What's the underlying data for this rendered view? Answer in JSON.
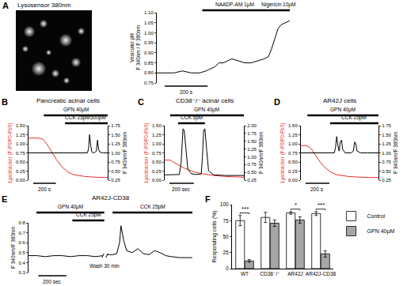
{
  "image": {
    "panel": "A",
    "caption": "Lysosensor 380nm"
  },
  "chart_data": [
    {
      "type": "line",
      "tick_labels": "y",
      "grid": false,
      "y_label": "Vesicular pH\nF 340nm / F 380nm",
      "xlim": [
        0,
        620
      ],
      "ylim": [
        0.75,
        1.1
      ],
      "yticks": [
        0.75,
        {
          "value": 0.8,
          "label": "0.80"
        },
        0.85,
        {
          "value": 0.9,
          "label": "0.90"
        },
        0.95,
        {
          "value": 1,
          "label": "1.00"
        },
        1.05,
        {
          "value": 1.1,
          "label": "1.10"
        }
      ],
      "series": [
        {
          "color": "#000000",
          "x": [
            0,
            40,
            80,
            120,
            160,
            200,
            230,
            250,
            270,
            290,
            310,
            330,
            350,
            380,
            410,
            440,
            470,
            500,
            520,
            535,
            550,
            565,
            580,
            600,
            620
          ],
          "values": [
            0.8,
            0.8,
            0.8,
            0.81,
            0.8,
            0.8,
            0.81,
            0.82,
            0.83,
            0.85,
            0.85,
            0.86,
            0.87,
            0.86,
            0.85,
            0.85,
            0.86,
            0.87,
            0.88,
            0.92,
            0.97,
            1.02,
            1.04,
            1.05,
            1.06
          ]
        }
      ],
      "periods": [
        {
          "label": "NAADP-AM 1μM",
          "start": 212,
          "end": 514
        },
        {
          "label": "Nigericin 10μM",
          "start": 514,
          "end": 620
        }
      ],
      "scale_bar": {
        "label": "200 s",
        "length": 200
      }
    },
    {
      "type": "line",
      "panel": "B",
      "title": "Pancreatic acinar cells",
      "tick_labels": "y",
      "grid": false,
      "y_label": "Lysotracker (F-F0/F0-Fb0)",
      "y2_label": "F 340nm/F 380nm",
      "xlim": [
        0,
        700
      ],
      "ylim": [
        0,
        1.5
      ],
      "yticks": [
        {
          "value": 0,
          "label": "0.00"
        },
        0.25,
        {
          "value": 0.5,
          "label": "0.50"
        },
        0.75,
        {
          "value": 1,
          "label": "1.00"
        },
        1.25,
        {
          "value": 1.5,
          "label": "1.50"
        }
      ],
      "y2lim": [
        0.25,
        1.75
      ],
      "y2ticks": [
        0.25,
        {
          "value": 0.5,
          "label": "0.50"
        },
        0.75,
        {
          "value": 1,
          "label": "1.00"
        },
        1.25,
        {
          "value": 1.5,
          "label": "1.50"
        },
        1.75
      ],
      "series": [
        {
          "color": "#e8302a",
          "x": [
            0,
            50,
            100,
            130,
            160,
            200,
            250,
            300,
            350,
            400,
            450,
            500,
            600,
            700
          ],
          "values": [
            1.15,
            1.16,
            1.15,
            1.12,
            1.0,
            0.8,
            0.55,
            0.35,
            0.22,
            0.15,
            0.12,
            0.1,
            0.08,
            0.07
          ]
        },
        {
          "color": "#000000",
          "axis": "y2",
          "x": [
            0,
            100,
            200,
            300,
            400,
            500,
            520,
            530,
            540,
            550,
            560,
            580,
            600,
            610,
            620,
            630,
            660,
            700
          ],
          "values": [
            1.0,
            1.0,
            0.99,
            1.0,
            1.0,
            1.0,
            1.0,
            1.1,
            1.5,
            1.2,
            1.02,
            1.0,
            1.05,
            1.35,
            1.1,
            1.02,
            1.0,
            1.0
          ]
        }
      ],
      "periods": [
        {
          "label": "GPN 40μM",
          "start": 135,
          "end": 700
        },
        {
          "label": "CCK 25pM",
          "start": 323,
          "end": 538
        },
        {
          "label": "500pM",
          "start": 538,
          "end": 700
        }
      ],
      "scale_bar": {
        "label": "200 s",
        "length": 200
      }
    },
    {
      "type": "line",
      "panel": "C",
      "title": "CD38⁻/⁻ acinar cells",
      "tick_labels": "y",
      "grid": false,
      "y_label": "Lysotracker (F-F0/F0-Fb0)",
      "y2_label": "F 340nm/F 380nm",
      "xlim": [
        0,
        650
      ],
      "ylim": [
        0,
        1.5
      ],
      "yticks": [
        {
          "value": 0,
          "label": "0.00"
        },
        0.25,
        {
          "value": 0.5,
          "label": "0.50"
        },
        0.75,
        {
          "value": 1,
          "label": "1.00"
        },
        1.25,
        {
          "value": 1.5,
          "label": "1.50"
        }
      ],
      "y2lim": [
        0.25,
        2
      ],
      "y2ticks": [
        0.25,
        {
          "value": 0.5,
          "label": "0.50"
        },
        0.75,
        {
          "value": 1,
          "label": "1.00"
        },
        1.25,
        {
          "value": 1.5,
          "label": "1.50"
        },
        1.75,
        {
          "value": 2,
          "label": "2.00"
        }
      ],
      "series": [
        {
          "color": "#e8302a",
          "x": [
            0,
            45,
            80,
            120,
            160,
            200,
            250,
            300,
            400,
            500,
            650
          ],
          "values": [
            0.55,
            0.55,
            0.48,
            0.4,
            0.33,
            0.28,
            0.22,
            0.18,
            0.13,
            0.1,
            0.08
          ]
        },
        {
          "color": "#000000",
          "axis": "y2",
          "x": [
            0,
            60,
            120,
            135,
            145,
            150,
            160,
            175,
            190,
            220,
            260,
            300,
            310,
            320,
            330,
            345,
            360,
            400,
            500,
            650
          ],
          "values": [
            0.42,
            0.42,
            0.43,
            0.8,
            1.6,
            1.9,
            1.85,
            1.2,
            0.6,
            0.45,
            0.43,
            0.45,
            1.0,
            1.85,
            1.9,
            1.2,
            0.55,
            0.42,
            0.4,
            0.4
          ]
        }
      ],
      "periods": [
        {
          "label": "GPN 40μM",
          "start": 45,
          "end": 650
        },
        {
          "label": "CCK 5pM",
          "start": 110,
          "end": 330
        }
      ],
      "scale_bar": {
        "label": "200 sec",
        "length": 200
      }
    },
    {
      "type": "line",
      "panel": "D",
      "title": "AR42J cells",
      "tick_labels": "y",
      "grid": false,
      "y_label": "Lysotracker (F-F0/F0-Fb0)",
      "y2_label": "F 340nm/F 380nm",
      "xlim": [
        0,
        650
      ],
      "ylim": [
        0,
        1.5
      ],
      "yticks": [
        {
          "value": 0,
          "label": "0.00"
        },
        0.25,
        {
          "value": 0.5,
          "label": "0.50"
        },
        0.75,
        {
          "value": 1,
          "label": "1.00"
        },
        1.25,
        {
          "value": 1.5,
          "label": "1.50"
        }
      ],
      "y2lim": [
        0.25,
        1.75
      ],
      "y2ticks": [
        0.25,
        {
          "value": 0.5,
          "label": "0.50"
        },
        0.75,
        {
          "value": 1,
          "label": "1.00"
        },
        1.25,
        {
          "value": 1.5,
          "label": "1.50"
        },
        1.75
      ],
      "series": [
        {
          "color": "#e8302a",
          "x": [
            0,
            40,
            60,
            90,
            120,
            160,
            200,
            250,
            300,
            400,
            500,
            650
          ],
          "values": [
            0.95,
            0.95,
            0.93,
            0.85,
            0.7,
            0.5,
            0.35,
            0.22,
            0.15,
            0.1,
            0.08,
            0.07
          ]
        },
        {
          "color": "#000000",
          "axis": "y2",
          "x": [
            0,
            80,
            160,
            240,
            280,
            290,
            300,
            310,
            320,
            330,
            340,
            350,
            370,
            420,
            440,
            450,
            460,
            470,
            500,
            560,
            650
          ],
          "values": [
            1.0,
            1.0,
            0.99,
            1.0,
            1.0,
            1.15,
            1.45,
            1.2,
            1.05,
            1.3,
            1.35,
            1.1,
            1.0,
            1.0,
            1.05,
            1.3,
            1.25,
            1.05,
            1.0,
            1.0,
            1.0
          ]
        }
      ],
      "periods": [
        {
          "label": "GPN 40μM",
          "start": 55,
          "end": 650
        },
        {
          "label": "CCK 25pM",
          "start": 245,
          "end": 650
        }
      ],
      "scale_bar": {
        "label": "200 s",
        "length": 200
      }
    },
    {
      "type": "line",
      "panel": "E",
      "title": "AR42J-CD38",
      "tick_labels": "y",
      "grid": false,
      "y_label": "F 340nm/F 380nm",
      "xlim": [
        0,
        1170
      ],
      "ylim": [
        0.3,
        0.8
      ],
      "yticks": [
        0.3,
        0.4,
        0.5,
        0.6,
        0.7,
        0.8
      ],
      "series": [
        {
          "color": "#000000",
          "x": [
            0,
            60,
            120,
            180,
            240,
            300,
            360,
            420,
            480,
            530,
            545,
            560,
            600,
            630,
            650,
            660,
            680,
            700,
            740,
            780,
            820,
            860,
            900,
            940,
            980,
            1020,
            1080,
            1170
          ],
          "values": [
            0.47,
            0.47,
            0.46,
            0.47,
            0.47,
            0.46,
            0.47,
            0.47,
            0.46,
            0.47,
            null,
            0.48,
            0.48,
            0.49,
            0.6,
            0.77,
            0.62,
            0.52,
            0.5,
            0.54,
            0.49,
            0.48,
            0.52,
            0.5,
            0.47,
            0.46,
            0.45,
            0.45
          ]
        }
      ],
      "periods": [
        {
          "label": "GPN 40μM",
          "start": 57,
          "end": 541
        },
        {
          "label": "CCK 25pM",
          "start": 313,
          "end": 541
        },
        {
          "label": "CCK 25pM",
          "start": 600,
          "end": 1170
        }
      ],
      "annotations": [
        {
          "text": "Wash 30 min",
          "x": 545
        }
      ],
      "scale_bar": {
        "label": "200 sec",
        "length": 200
      }
    },
    {
      "type": "bar",
      "panel": "F",
      "grid": false,
      "legend": "right",
      "y_label": "Responding cells (%)",
      "categories": [
        "WT",
        "CD38⁻/⁻",
        "AR42J",
        "AR42J-CD38"
      ],
      "ylim": [
        0,
        100
      ],
      "yticks": [
        0,
        25,
        50,
        75,
        100
      ],
      "series": [
        {
          "name": "Control",
          "color": "#ffffff",
          "values": [
            75,
            80,
            87,
            86
          ],
          "errors": [
            8,
            8,
            2,
            3
          ]
        },
        {
          "name": "GPN 40μM",
          "color": "#a6a6a6",
          "values": [
            12,
            71,
            76,
            23
          ],
          "errors": [
            2,
            5,
            5,
            5
          ]
        }
      ],
      "significance": [
        {
          "category": "WT",
          "label": "***"
        },
        {
          "category": "AR42J",
          "label": "*"
        },
        {
          "category": "AR42J-CD38",
          "label": "***"
        }
      ]
    }
  ]
}
